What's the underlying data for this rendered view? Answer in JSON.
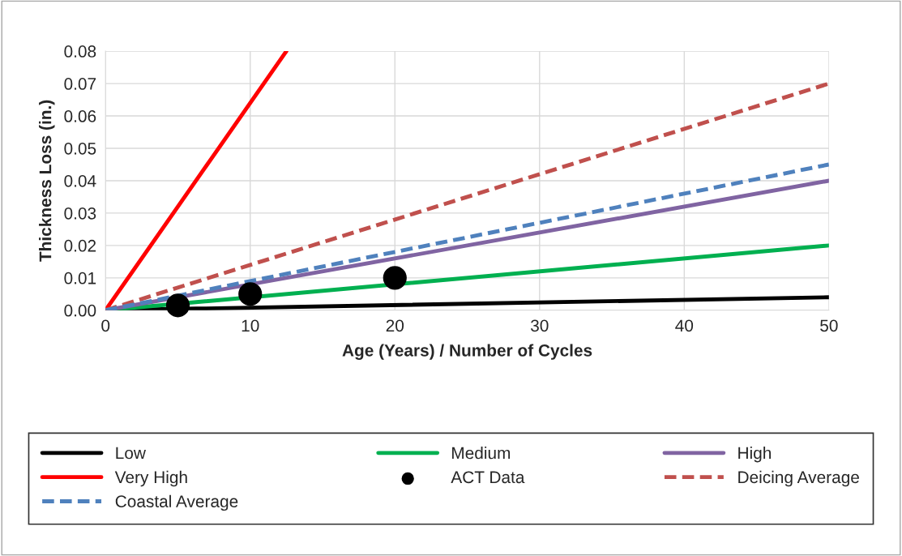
{
  "chart_data": {
    "type": "line",
    "xlabel": "Age (Years) / Number of Cycles",
    "ylabel": "Thickness Loss (in.)",
    "xlim": [
      0,
      50
    ],
    "xticks": [
      0,
      10,
      20,
      30,
      40,
      50
    ],
    "ylim": [
      0,
      0.08
    ],
    "yticks": [
      {
        "value": 0,
        "label": "0.00"
      },
      {
        "value": 0.01,
        "label": "0.01"
      },
      {
        "value": 0.02,
        "label": "0.02"
      },
      {
        "value": 0.03,
        "label": "0.03"
      },
      {
        "value": 0.04,
        "label": "0.04"
      },
      {
        "value": 0.05,
        "label": "0.05"
      },
      {
        "value": 0.06,
        "label": "0.06"
      },
      {
        "value": 0.07,
        "label": "0.07"
      },
      {
        "value": 0.08,
        "label": "0.08"
      }
    ],
    "grid": true,
    "legend": "bottom",
    "marker": "none",
    "series": [
      {
        "name": "Low",
        "color": "#000000",
        "x": [
          0,
          50
        ],
        "values": [
          0,
          0.004
        ],
        "line_style": "solid"
      },
      {
        "name": "Medium",
        "color": "#00b050",
        "x": [
          0,
          50
        ],
        "values": [
          0,
          0.02
        ],
        "line_style": "solid"
      },
      {
        "name": "High",
        "color": "#8064a2",
        "x": [
          0,
          50
        ],
        "values": [
          0,
          0.04
        ],
        "line_style": "solid"
      },
      {
        "name": "Very High",
        "color": "#ff0000",
        "x": [
          0,
          12.5
        ],
        "values": [
          0,
          0.08
        ],
        "line_style": "solid"
      },
      {
        "name": "ACT Data",
        "type": "scatter",
        "marker": "circle",
        "color": "#000000",
        "x": [
          5,
          10,
          20
        ],
        "values": [
          0.0015,
          0.005,
          0.01
        ]
      },
      {
        "name": "Deicing Average",
        "color": "#c0504d",
        "x": [
          0,
          50
        ],
        "values": [
          0,
          0.07
        ],
        "line_style": "dashed"
      },
      {
        "name": "Coastal Average",
        "color": "#4f81bd",
        "x": [
          0,
          50
        ],
        "values": [
          0,
          0.045
        ],
        "line_style": "dashed"
      }
    ]
  }
}
